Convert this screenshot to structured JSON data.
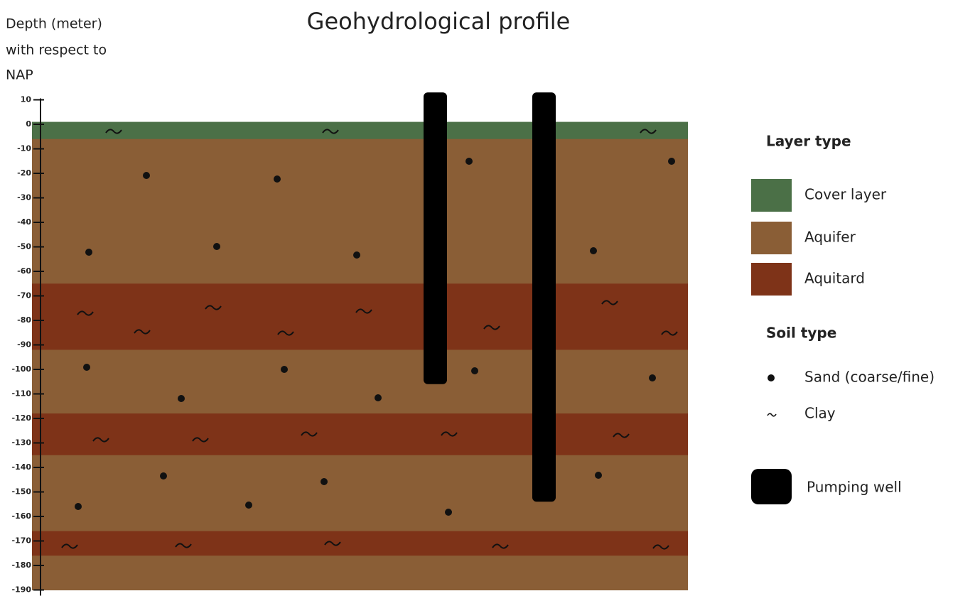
{
  "title": "Geohydrological profile",
  "axis": {
    "label": [
      "Depth (meter)",
      "with respect to",
      "NAP"
    ],
    "ylim": [
      10,
      -190
    ],
    "yticks": [
      10,
      0,
      -10,
      -20,
      -30,
      -40,
      -50,
      -60,
      -70,
      -80,
      -90,
      -100,
      -110,
      -120,
      -130,
      -140,
      -150,
      -160,
      -170,
      -180,
      -190
    ]
  },
  "layers": [
    {
      "top": 1,
      "bottom": -6,
      "color": "#4b7047"
    },
    {
      "top": -6,
      "bottom": -65,
      "color": "#8a5e36"
    },
    {
      "top": -65,
      "bottom": -92,
      "color": "#7e3318"
    },
    {
      "top": -92,
      "bottom": -118,
      "color": "#8a5e36"
    },
    {
      "top": -118,
      "bottom": -135,
      "color": "#7e3318"
    },
    {
      "top": -135,
      "bottom": -166,
      "color": "#8a5e36"
    },
    {
      "top": -166,
      "bottom": -176,
      "color": "#7e3318"
    },
    {
      "top": -176,
      "bottom": -190,
      "color": "#8a5e36"
    }
  ],
  "wells": [
    {
      "top": 13,
      "bottom": -106
    },
    {
      "top": 13,
      "bottom": -154
    }
  ],
  "legend": {
    "layer_title": "Layer type",
    "layer_types": [
      {
        "label": "Cover layer",
        "color": "#4b7047"
      },
      {
        "label": "Aquifer",
        "color": "#8a5e36"
      },
      {
        "label": "Aquitard",
        "color": "#7e3318"
      }
    ],
    "soil_title": "Soil type",
    "soil_types": [
      "Sand (coarse/fine)",
      "Clay"
    ],
    "well_label": "Pumping well"
  }
}
